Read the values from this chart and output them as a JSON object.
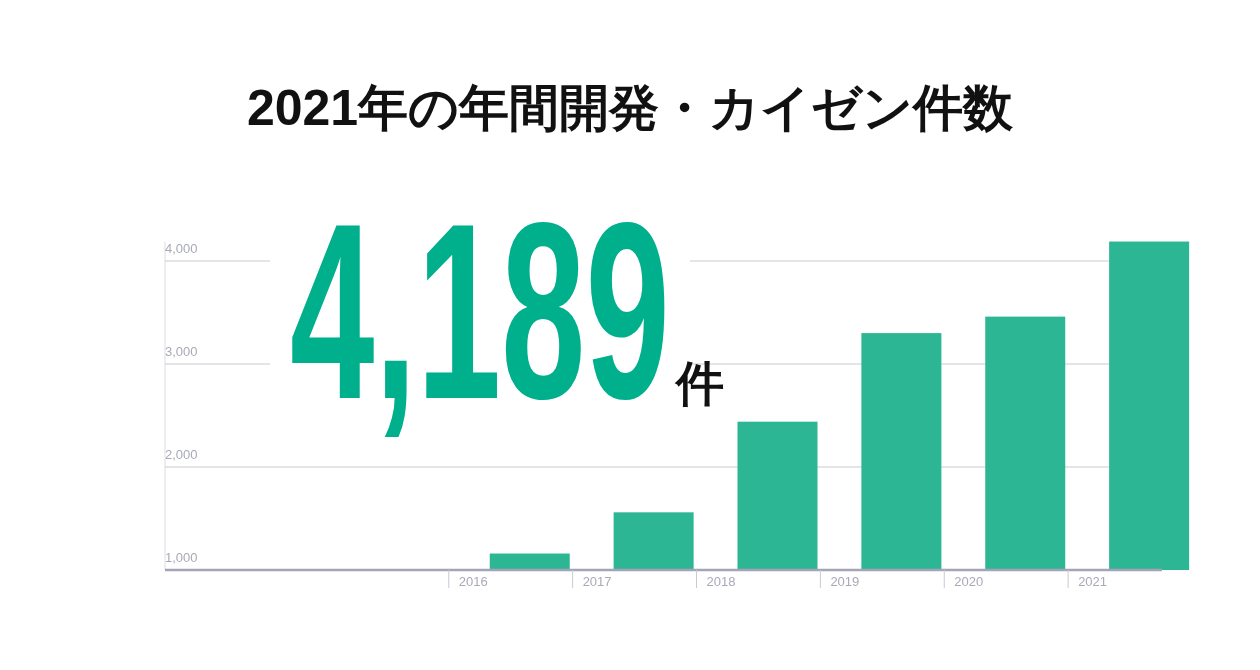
{
  "chart_data": {
    "type": "bar",
    "title": "2021年の年間開発・カイゼン件数",
    "categories": [
      null,
      null,
      "2016",
      "2017",
      "2018",
      "2019",
      "2020",
      "2021"
    ],
    "values": [
      null,
      null,
      1160,
      1560,
      2440,
      3300,
      3460,
      4189
    ],
    "color": "#2db694",
    "ylim": [
      1000,
      4189
    ],
    "yticks": [
      {
        "value": 1000,
        "label": "1,000"
      },
      {
        "value": 2000,
        "label": "2,000"
      },
      {
        "value": 3000,
        "label": "3,000"
      },
      {
        "value": 4000,
        "label": "4,000"
      }
    ],
    "grid": "y",
    "annotations": [
      "4,189件"
    ]
  }
}
